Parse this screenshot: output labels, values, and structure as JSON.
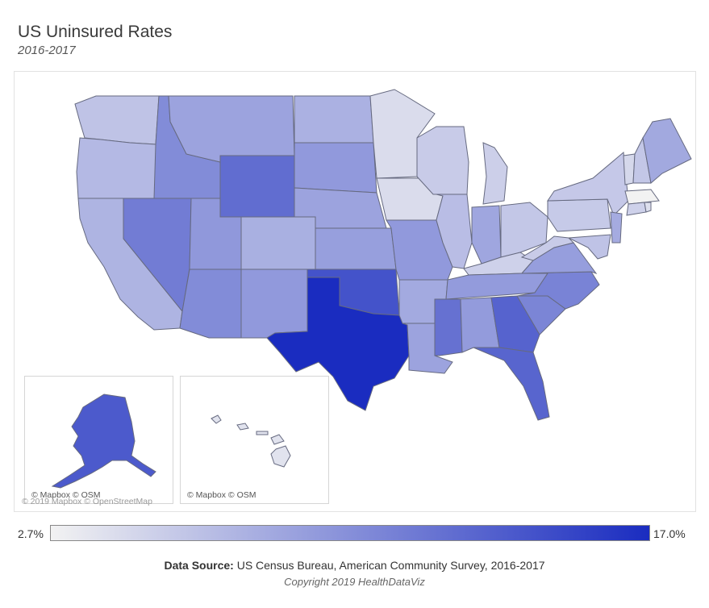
{
  "header": {
    "title": "US Uninsured Rates",
    "subtitle": "2016-2017"
  },
  "map": {
    "credits": {
      "alaska": "© Mapbox © OSM",
      "hawaii": "© Mapbox © OSM",
      "base": "© 2019 Mapbox © OpenStreetMap"
    },
    "color_scale": {
      "low": "#f2f2f2",
      "high": "#1a2cc0"
    },
    "states": {
      "WA": 6.1,
      "OR": 6.8,
      "CA": 7.2,
      "NV": 11.2,
      "ID": 10.1,
      "MT": 8.4,
      "WY": 12.3,
      "UT": 9.2,
      "CO": 7.5,
      "AZ": 10.1,
      "NM": 9.1,
      "ND": 7.4,
      "SD": 9.1,
      "NE": 8.4,
      "KS": 8.7,
      "OK": 14.2,
      "TX": 17.0,
      "MN": 4.3,
      "IA": 4.3,
      "MO": 9.1,
      "AR": 7.9,
      "LA": 8.4,
      "WI": 5.5,
      "IL": 6.5,
      "MI": 5.2,
      "IN": 8.2,
      "OH": 5.8,
      "KY": 5.1,
      "TN": 9.0,
      "MS": 12.0,
      "AL": 9.0,
      "GA": 13.0,
      "FL": 12.9,
      "SC": 10.6,
      "NC": 10.7,
      "VA": 8.8,
      "WV": 5.5,
      "PA": 5.6,
      "NY": 5.7,
      "VT": 4.6,
      "NH": 5.8,
      "ME": 8.0,
      "MA": 2.7,
      "CT": 5.1,
      "RI": 4.1,
      "NJ": 7.8,
      "DE": 5.5,
      "MD": 6.1,
      "AK": 13.7,
      "HI": 3.8
    }
  },
  "legend": {
    "min_label": "2.7%",
    "max_label": "17.0%",
    "min": 2.7,
    "max": 17.0
  },
  "footer": {
    "source_label": "Data Source:",
    "source_text": " US Census Bureau, American Community Survey, 2016-2017",
    "copyright": "Copyright 2019 HealthDataViz"
  }
}
